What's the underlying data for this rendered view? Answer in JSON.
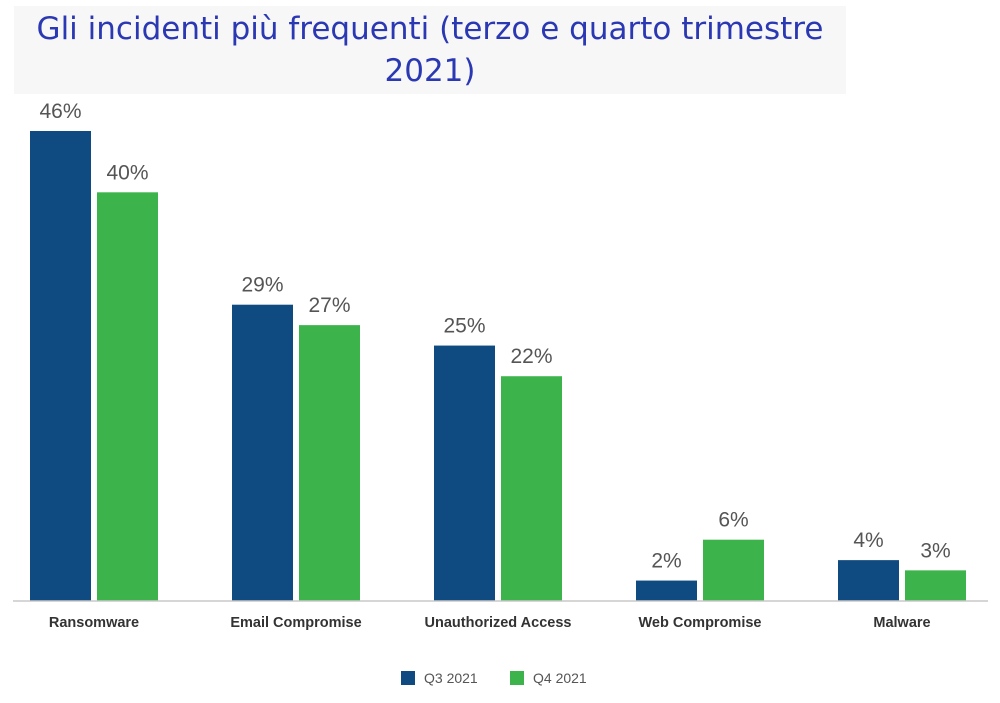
{
  "chart_data": {
    "type": "bar",
    "title": "Gli incidenti più frequenti (terzo e quarto trimestre 2021)",
    "categories": [
      "Ransomware",
      "Email Compromise",
      "Unauthorized Access",
      "Web Compromise",
      "Malware"
    ],
    "series": [
      {
        "name": "Q3 2021",
        "values": [
          46,
          29,
          25,
          2,
          4
        ],
        "color": "#0f4a81"
      },
      {
        "name": "Q4 2021",
        "values": [
          40,
          27,
          22,
          6,
          3
        ],
        "color": "#3cb44b"
      }
    ],
    "value_suffix": "%",
    "ylim": [
      0,
      46
    ],
    "grid": false,
    "legend_position": "bottom-center"
  }
}
